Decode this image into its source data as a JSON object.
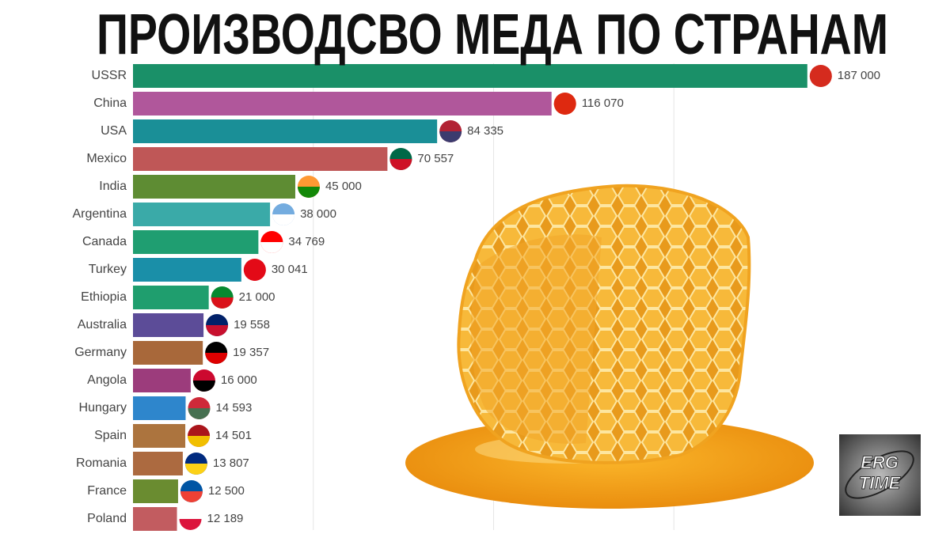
{
  "chart_data": {
    "type": "barh",
    "title": "ПРОИЗВОДСВО МЕДА ПО СТРАНАМ",
    "categories": [
      "USSR",
      "China",
      "USA",
      "Mexico",
      "India",
      "Argentina",
      "Canada",
      "Turkey",
      "Ethiopia",
      "Australia",
      "Germany",
      "Angola",
      "Hungary",
      "Spain",
      "Romania",
      "France",
      "Poland"
    ],
    "values": [
      187000,
      116070,
      84335,
      70557,
      45000,
      38000,
      34769,
      30041,
      21000,
      19558,
      19357,
      16000,
      14593,
      14501,
      13807,
      12500,
      12189
    ],
    "value_labels": [
      "187 000",
      "116 070",
      "84 335",
      "70 557",
      "45 000",
      "38 000",
      "34 769",
      "30 041",
      "21 000",
      "19 558",
      "19 357",
      "16 000",
      "14 593",
      "14 501",
      "13 807",
      "12 500",
      "12 189"
    ],
    "colors": [
      "#1a9068",
      "#b0579b",
      "#1a8f97",
      "#bf5757",
      "#5e8c33",
      "#3aaaa8",
      "#1f9e71",
      "#1a8fa8",
      "#1f9e6e",
      "#5c4c98",
      "#a8683a",
      "#9c3c7c",
      "#2e86cc",
      "#ac743e",
      "#ac6a40",
      "#6a8c30",
      "#c25c60"
    ],
    "xlim": [
      0,
      200000
    ],
    "gridlines": [
      50000,
      100000,
      150000
    ]
  },
  "logo": {
    "line1": "ERG",
    "line2": "TIME"
  }
}
